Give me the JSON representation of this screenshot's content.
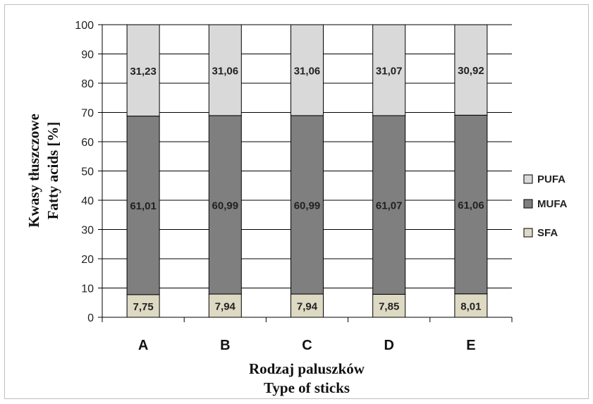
{
  "chart_data": {
    "type": "bar",
    "stacked": true,
    "categories": [
      "A",
      "B",
      "C",
      "D",
      "E"
    ],
    "series": [
      {
        "name": "SFA",
        "values": [
          7.75,
          7.94,
          7.94,
          7.85,
          8.01
        ],
        "color": "#ddd9c3"
      },
      {
        "name": "MUFA",
        "values": [
          61.01,
          60.99,
          60.99,
          61.07,
          61.06
        ],
        "color": "#7f7f7f"
      },
      {
        "name": "PUFA",
        "values": [
          31.23,
          31.06,
          31.06,
          31.07,
          30.92
        ],
        "color": "#d9d9d9"
      }
    ],
    "data_labels": {
      "SFA": [
        "7,75",
        "7,94",
        "7,94",
        "7,85",
        "8,01"
      ],
      "MUFA": [
        "61,01",
        "60,99",
        "60,99",
        "61,07",
        "61,06"
      ],
      "PUFA": [
        "31,23",
        "31,06",
        "31,06",
        "31,07",
        "30,92"
      ]
    },
    "ylim": [
      0,
      100
    ],
    "yticks": [
      "0",
      "10",
      "20",
      "30",
      "40",
      "50",
      "60",
      "70",
      "80",
      "90",
      "100"
    ],
    "ylabel_line1": "Kwasy tłuszczowe",
    "ylabel_line2": "Fatty acids [%]",
    "xlabel_line1": "Rodzaj paluszków",
    "xlabel_line2": "Type of sticks",
    "grid": true,
    "legend_position": "right",
    "legend_order": [
      "PUFA",
      "MUFA",
      "SFA"
    ]
  }
}
